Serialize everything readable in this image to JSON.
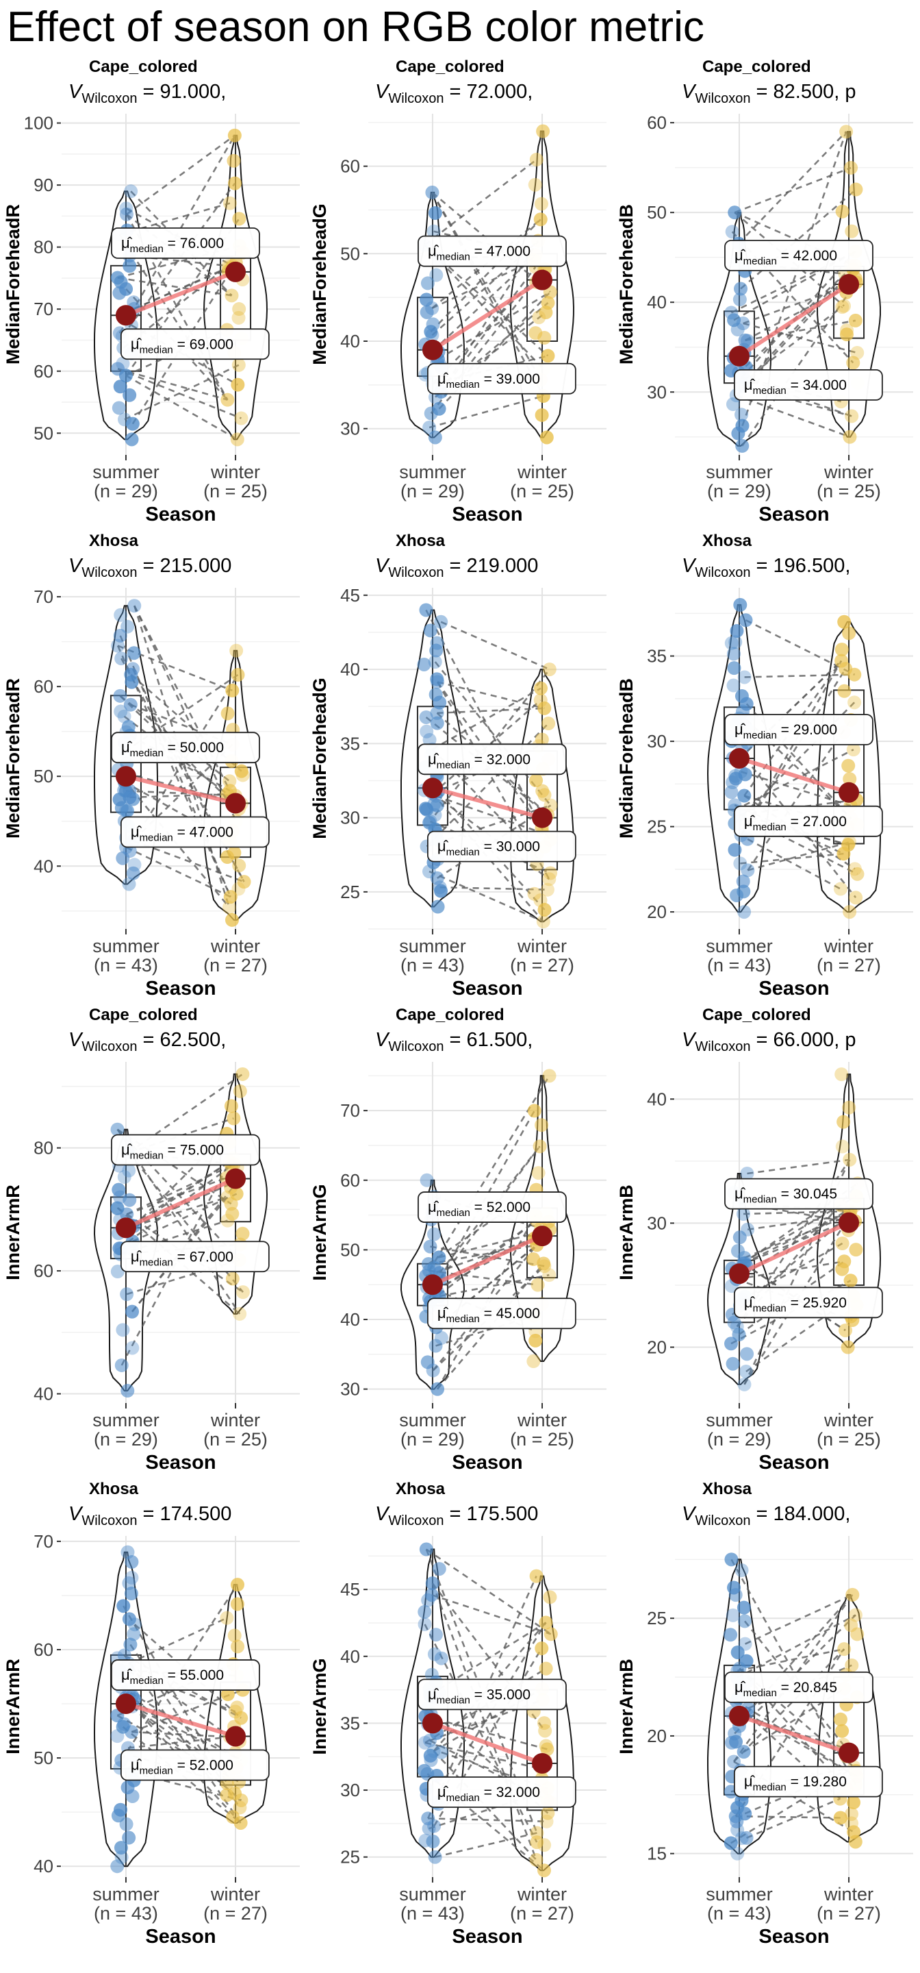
{
  "title": "Effect of season on RGB color metric",
  "stats_prefix": {
    "v": "V",
    "sub": "Wilcoxon",
    "eq": " = "
  },
  "median_label_parts": {
    "mu": "μ̂",
    "sub": "median",
    "eq": " = "
  },
  "xlabel": "Season",
  "x_categories": [
    "summer",
    "winter"
  ],
  "colors": {
    "summer_point": "#4e8ac8",
    "winter_point": "#e9c04b",
    "median_dot": "#8b1616",
    "median_line": "#f07373",
    "pair_line": "#5a5a5a",
    "grid_major": "#e3e3e3",
    "grid_minor": "#f1f1f1",
    "tick_text": "#404040",
    "violin_stroke": "#1a1a1a"
  },
  "chart_data": {
    "type": "violin",
    "title": "Effect of season on RGB color metric",
    "xlabel": "Season",
    "panels": [
      {
        "group": "Cape_colored",
        "stat_value": "91.000,",
        "ylabel": "MedianForeheadR",
        "yticks": [
          50,
          60,
          70,
          80,
          90,
          100
        ],
        "ydomain": [
          46.5,
          101.5
        ],
        "summer": {
          "label": "summer",
          "n_label": "(n = 29)",
          "n": 29,
          "min": 49,
          "q1": 60,
          "median": 69,
          "q3": 77,
          "max": 89,
          "median_label": "69.000"
        },
        "winter": {
          "label": "winter",
          "n_label": "(n = 25)",
          "n": 25,
          "min": 49,
          "q1": 65,
          "median": 76,
          "q3": 78.5,
          "max": 98,
          "median_label": "76.000"
        }
      },
      {
        "group": "Cape_colored",
        "stat_value": "72.000,",
        "ylabel": "MedianForeheadG",
        "yticks": [
          30,
          40,
          50,
          60
        ],
        "ydomain": [
          27,
          66
        ],
        "summer": {
          "label": "summer",
          "n_label": "(n = 29)",
          "n": 29,
          "min": 29,
          "q1": 36,
          "median": 39,
          "q3": 45,
          "max": 57,
          "median_label": "39.000"
        },
        "winter": {
          "label": "winter",
          "n_label": "(n = 25)",
          "n": 25,
          "min": 29,
          "q1": 40,
          "median": 47,
          "q3": 50,
          "max": 64,
          "median_label": "47.000"
        }
      },
      {
        "group": "Cape_colored",
        "stat_value": "82.500, p",
        "ylabel": "MedianForeheadB",
        "yticks": [
          30,
          40,
          50,
          60
        ],
        "ydomain": [
          23,
          61
        ],
        "summer": {
          "label": "summer",
          "n_label": "(n = 29)",
          "n": 29,
          "min": 24,
          "q1": 31,
          "median": 34,
          "q3": 39,
          "max": 50,
          "median_label": "34.000"
        },
        "winter": {
          "label": "winter",
          "n_label": "(n = 25)",
          "n": 25,
          "min": 25,
          "q1": 36,
          "median": 42,
          "q3": 44,
          "max": 59,
          "median_label": "42.000"
        }
      },
      {
        "group": "Xhosa",
        "stat_value": "215.000",
        "ylabel": "MedianForeheadR",
        "yticks": [
          40,
          50,
          60,
          70
        ],
        "ydomain": [
          33,
          71
        ],
        "summer": {
          "label": "summer",
          "n_label": "(n = 43)",
          "n": 43,
          "min": 38,
          "q1": 46,
          "median": 50,
          "q3": 59,
          "max": 69,
          "median_label": "50.000"
        },
        "winter": {
          "label": "winter",
          "n_label": "(n = 27)",
          "n": 27,
          "min": 34,
          "q1": 41,
          "median": 47,
          "q3": 51,
          "max": 64,
          "median_label": "47.000"
        }
      },
      {
        "group": "Xhosa",
        "stat_value": "219.000",
        "ylabel": "MedianForeheadG",
        "yticks": [
          25,
          30,
          35,
          40,
          45
        ],
        "ydomain": [
          22.5,
          45.5
        ],
        "summer": {
          "label": "summer",
          "n_label": "(n = 43)",
          "n": 43,
          "min": 24,
          "q1": 29.5,
          "median": 32,
          "q3": 37.5,
          "max": 44,
          "median_label": "32.000"
        },
        "winter": {
          "label": "winter",
          "n_label": "(n = 27)",
          "n": 27,
          "min": 23,
          "q1": 26.5,
          "median": 30,
          "q3": 34.5,
          "max": 40,
          "median_label": "30.000"
        }
      },
      {
        "group": "Xhosa",
        "stat_value": "196.500,",
        "ylabel": "MedianForeheadB",
        "yticks": [
          20,
          25,
          30,
          35
        ],
        "ydomain": [
          19,
          39
        ],
        "summer": {
          "label": "summer",
          "n_label": "(n = 43)",
          "n": 43,
          "min": 20,
          "q1": 26,
          "median": 29,
          "q3": 32,
          "max": 38,
          "median_label": "29.000"
        },
        "winter": {
          "label": "winter",
          "n_label": "(n = 27)",
          "n": 27,
          "min": 20,
          "q1": 24,
          "median": 27,
          "q3": 33,
          "max": 37,
          "median_label": "27.000"
        }
      },
      {
        "group": "Cape_colored",
        "stat_value": "62.500,",
        "ylabel": "InnerArmR",
        "yticks": [
          40,
          60,
          80
        ],
        "ydomain": [
          38.5,
          94
        ],
        "summer": {
          "label": "summer",
          "n_label": "(n = 29)",
          "n": 29,
          "min": 40.5,
          "q1": 62,
          "median": 67,
          "q3": 72,
          "max": 83,
          "median_label": "67.000"
        },
        "winter": {
          "label": "winter",
          "n_label": "(n = 25)",
          "n": 25,
          "min": 53,
          "q1": 68,
          "median": 75,
          "q3": 79,
          "max": 92,
          "median_label": "75.000"
        }
      },
      {
        "group": "Cape_colored",
        "stat_value": "61.500,",
        "ylabel": "InnerArmG",
        "yticks": [
          30,
          40,
          50,
          60,
          70
        ],
        "ydomain": [
          28,
          77
        ],
        "summer": {
          "label": "summer",
          "n_label": "(n = 29)",
          "n": 29,
          "min": 30,
          "q1": 42,
          "median": 45,
          "q3": 48,
          "max": 60,
          "median_label": "45.000"
        },
        "winter": {
          "label": "winter",
          "n_label": "(n = 25)",
          "n": 25,
          "min": 34,
          "q1": 46,
          "median": 52,
          "q3": 56,
          "max": 75,
          "median_label": "52.000"
        }
      },
      {
        "group": "Cape_colored",
        "stat_value": "66.000, p",
        "ylabel": "InnerArmB",
        "yticks": [
          20,
          30,
          40
        ],
        "ydomain": [
          15.5,
          43
        ],
        "summer": {
          "label": "summer",
          "n_label": "(n = 29)",
          "n": 29,
          "min": 17,
          "q1": 22,
          "median": 25.92,
          "q3": 27,
          "max": 34,
          "median_label": "25.920"
        },
        "winter": {
          "label": "winter",
          "n_label": "(n = 25)",
          "n": 25,
          "min": 20,
          "q1": 25,
          "median": 30.045,
          "q3": 32,
          "max": 42,
          "median_label": "30.045"
        }
      },
      {
        "group": "Xhosa",
        "stat_value": "174.500",
        "ylabel": "InnerArmR",
        "yticks": [
          40,
          50,
          60,
          70
        ],
        "ydomain": [
          39,
          70.5
        ],
        "summer": {
          "label": "summer",
          "n_label": "(n = 43)",
          "n": 43,
          "min": 40,
          "q1": 49,
          "median": 55,
          "q3": 59.5,
          "max": 69,
          "median_label": "55.000"
        },
        "winter": {
          "label": "winter",
          "n_label": "(n = 27)",
          "n": 27,
          "min": 44,
          "q1": 47.5,
          "median": 52,
          "q3": 57,
          "max": 66,
          "median_label": "52.000"
        }
      },
      {
        "group": "Xhosa",
        "stat_value": "175.500",
        "ylabel": "InnerArmG",
        "yticks": [
          25,
          30,
          35,
          40,
          45
        ],
        "ydomain": [
          23.5,
          49
        ],
        "summer": {
          "label": "summer",
          "n_label": "(n = 43)",
          "n": 43,
          "min": 25,
          "q1": 31,
          "median": 35,
          "q3": 38.5,
          "max": 48,
          "median_label": "35.000"
        },
        "winter": {
          "label": "winter",
          "n_label": "(n = 27)",
          "n": 27,
          "min": 24,
          "q1": 28.5,
          "median": 32,
          "q3": 37.5,
          "max": 46,
          "median_label": "32.000"
        }
      },
      {
        "group": "Xhosa",
        "stat_value": "184.000,",
        "ylabel": "InnerArmB",
        "yticks": [
          15,
          20,
          25
        ],
        "ydomain": [
          14,
          28.5
        ],
        "summer": {
          "label": "summer",
          "n_label": "(n = 43)",
          "n": 43,
          "min": 15,
          "q1": 17.5,
          "median": 20.845,
          "q3": 23,
          "max": 27.5,
          "median_label": "20.845"
        },
        "winter": {
          "label": "winter",
          "n_label": "(n = 27)",
          "n": 27,
          "min": 15.5,
          "q1": 17.5,
          "median": 19.28,
          "q3": 22.5,
          "max": 26,
          "median_label": "19.280"
        }
      }
    ]
  }
}
